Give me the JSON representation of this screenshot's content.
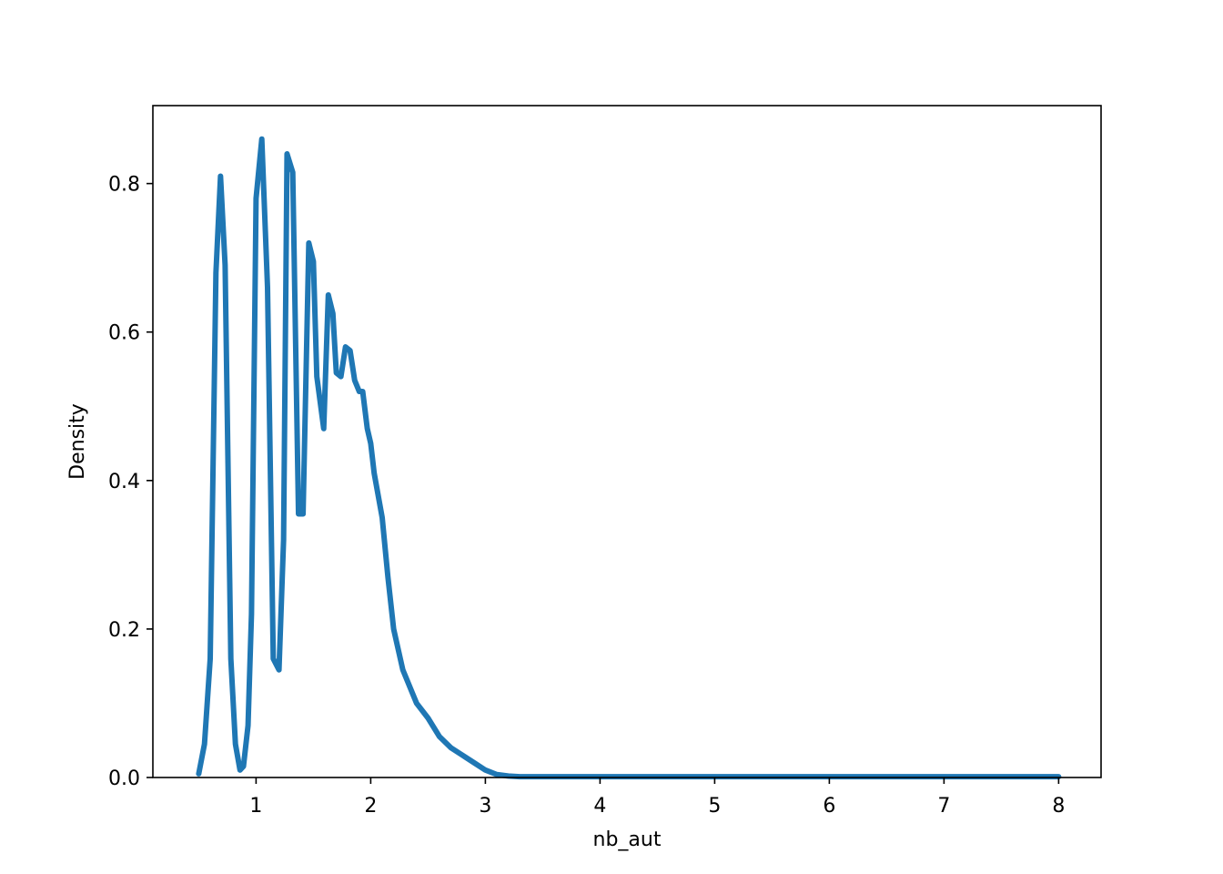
{
  "chart_data": {
    "type": "line",
    "title": "",
    "xlabel": "nb_aut",
    "ylabel": "Density",
    "xlim": [
      0.1,
      8.37
    ],
    "ylim": [
      0,
      0.905
    ],
    "xticks": [
      1,
      2,
      3,
      4,
      5,
      6,
      7,
      8
    ],
    "yticks": [
      0.0,
      0.2,
      0.4,
      0.6,
      0.8
    ],
    "xtick_labels": [
      "1",
      "2",
      "3",
      "4",
      "5",
      "6",
      "7",
      "8"
    ],
    "ytick_labels": [
      "0.0",
      "0.2",
      "0.4",
      "0.6",
      "0.8"
    ],
    "grid": false,
    "legend": null,
    "line_color": "#1f77b4",
    "series": [
      {
        "x": [
          0.5,
          0.55,
          0.6,
          0.65,
          0.69,
          0.73,
          0.78,
          0.82,
          0.86,
          0.89,
          0.93,
          0.96,
          1.0,
          1.05,
          1.1,
          1.15,
          1.2,
          1.24,
          1.27,
          1.32,
          1.37,
          1.41,
          1.46,
          1.5,
          1.53,
          1.59,
          1.63,
          1.67,
          1.7,
          1.74,
          1.78,
          1.82,
          1.86,
          1.9,
          1.93,
          1.97,
          2.0,
          2.03,
          2.1,
          2.15,
          2.2,
          2.28,
          2.4,
          2.5,
          2.6,
          2.7,
          2.8,
          2.9,
          3.0,
          3.1,
          3.2,
          3.3,
          3.4,
          3.5,
          3.7,
          4.0,
          4.5,
          5.0,
          6.0,
          7.0,
          8.0
        ],
        "y": [
          0.005,
          0.045,
          0.16,
          0.68,
          0.81,
          0.69,
          0.16,
          0.045,
          0.01,
          0.015,
          0.07,
          0.22,
          0.78,
          0.86,
          0.66,
          0.16,
          0.145,
          0.32,
          0.84,
          0.815,
          0.355,
          0.355,
          0.72,
          0.695,
          0.54,
          0.47,
          0.65,
          0.625,
          0.545,
          0.54,
          0.58,
          0.575,
          0.535,
          0.52,
          0.52,
          0.47,
          0.45,
          0.41,
          0.35,
          0.27,
          0.2,
          0.145,
          0.1,
          0.08,
          0.055,
          0.04,
          0.03,
          0.02,
          0.01,
          0.004,
          0.002,
          0.001,
          0.001,
          0.001,
          0.001,
          0.001,
          0.001,
          0.001,
          0.001,
          0.001,
          0.001
        ]
      }
    ]
  }
}
